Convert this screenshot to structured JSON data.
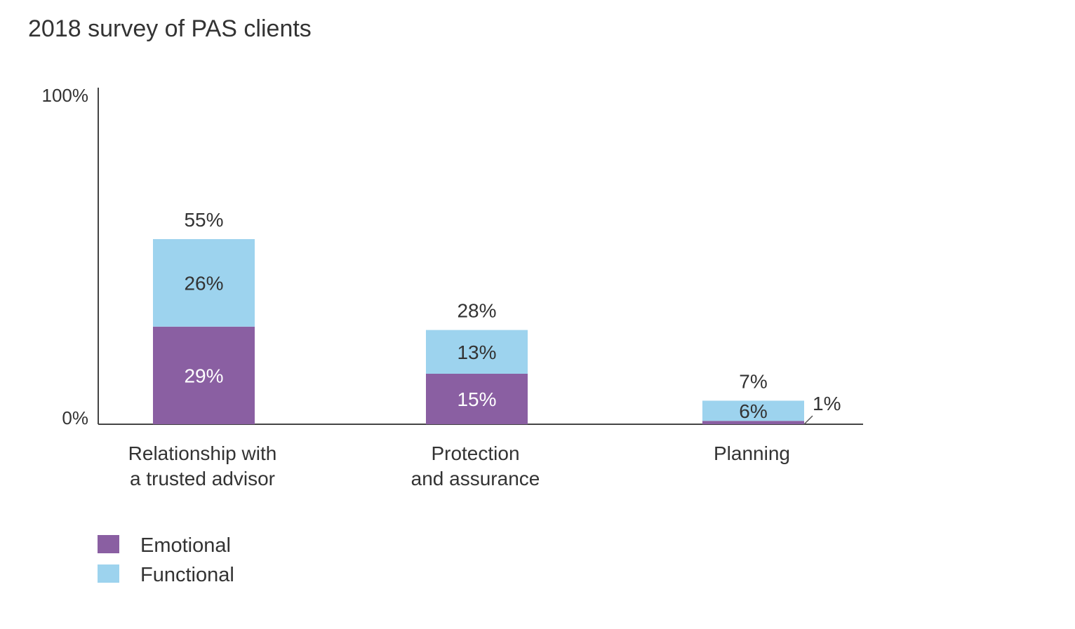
{
  "chart_data": {
    "type": "bar",
    "stacked": true,
    "title": "2018 survey of PAS clients",
    "xlabel": "",
    "ylabel": "",
    "ylim": [
      0,
      100
    ],
    "y_ticks": [
      "0%",
      "100%"
    ],
    "grid": false,
    "categories": [
      [
        "Relationship with",
        "a trusted advisor"
      ],
      [
        "Protection",
        "and assurance"
      ],
      [
        "Planning"
      ]
    ],
    "totals": [
      55,
      28,
      7
    ],
    "total_labels": [
      "55%",
      "28%",
      "7%"
    ],
    "series": [
      {
        "name": "Emotional",
        "color": "#8a5fa2",
        "values": [
          29,
          15,
          1
        ],
        "labels": [
          "29%",
          "15%",
          "1%"
        ]
      },
      {
        "name": "Functional",
        "color": "#9dd3ee",
        "values": [
          26,
          13,
          6
        ],
        "labels": [
          "26%",
          "13%",
          "6%"
        ]
      }
    ],
    "legend_placement": "bottom-left"
  }
}
